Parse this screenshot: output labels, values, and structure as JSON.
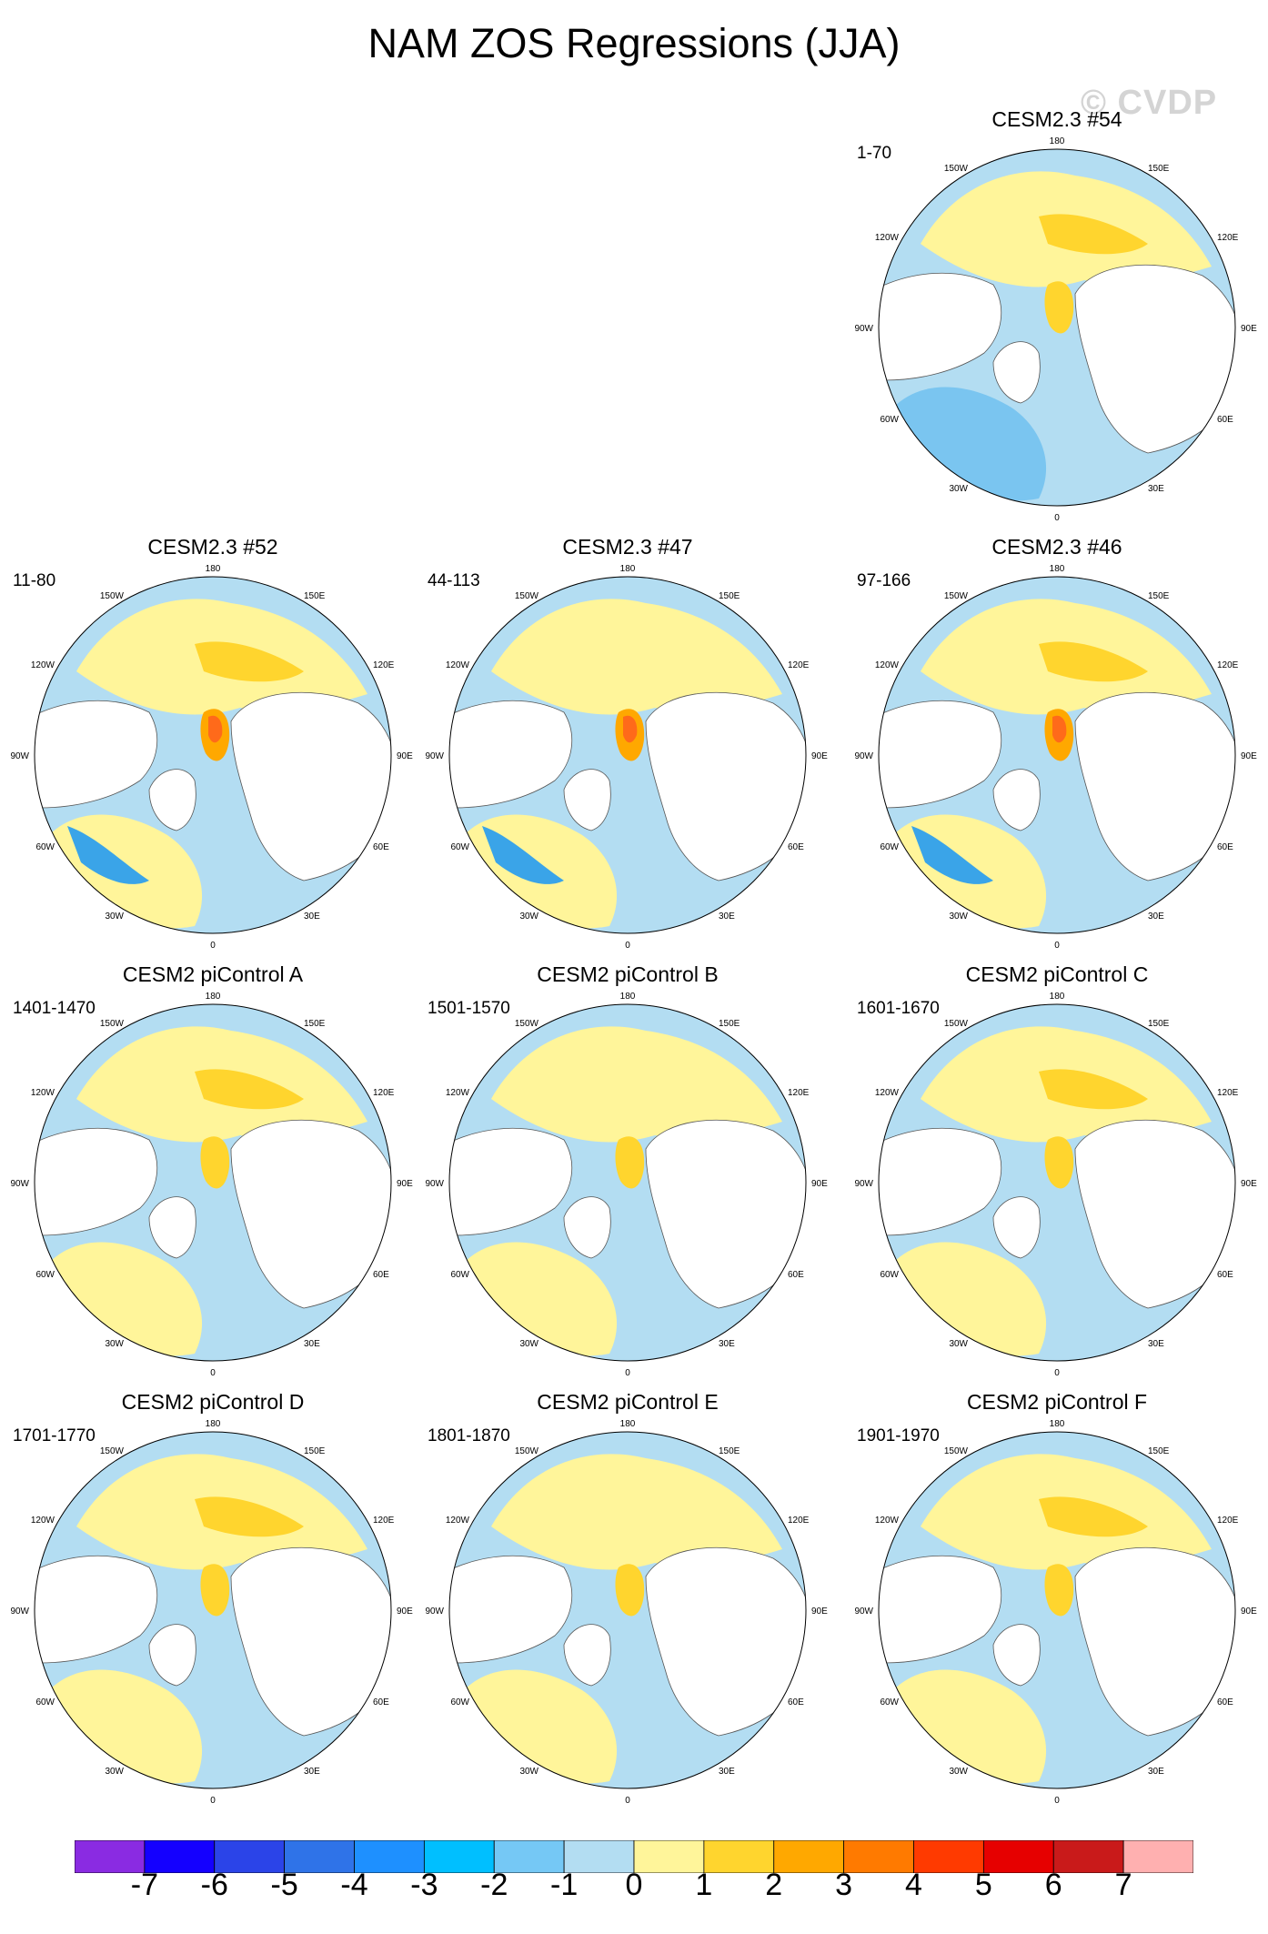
{
  "title": "NAM ZOS Regressions (JJA)",
  "watermark": "© CVDP",
  "panels": [
    {
      "title": "CESM2.3 #54",
      "period": "1-70"
    },
    {
      "title": "CESM2.3 #52",
      "period": "11-80"
    },
    {
      "title": "CESM2.3 #47",
      "period": "44-113"
    },
    {
      "title": "CESM2.3 #46",
      "period": "97-166"
    },
    {
      "title": "CESM2 piControl A",
      "period": "1401-1470"
    },
    {
      "title": "CESM2 piControl B",
      "period": "1501-1570"
    },
    {
      "title": "CESM2 piControl C",
      "period": "1601-1670"
    },
    {
      "title": "CESM2 piControl D",
      "period": "1701-1770"
    },
    {
      "title": "CESM2 piControl E",
      "period": "1801-1870"
    },
    {
      "title": "CESM2 piControl F",
      "period": "1901-1970"
    }
  ],
  "map_labels": {
    "top": "180",
    "bottom": "0",
    "left": "90W",
    "right": "90E",
    "upper_left_1": "150W",
    "upper_left_2": "120W",
    "lower_left_1": "60W",
    "lower_left_2": "30W",
    "upper_right_1": "150E",
    "upper_right_2": "120E",
    "lower_right_1": "60E",
    "lower_right_2": "30E"
  },
  "map_colors": {
    "ocean_neg": "#b3ddf2",
    "ocean_neg2": "#7ac5f0",
    "ocean_neg3": "#3aa4e8",
    "ocean_pos": "#fff59a",
    "ocean_pos2": "#ffd52e",
    "ocean_pos3": "#ffa800",
    "ocean_pos4": "#ff6a1a",
    "land": "#ffffff",
    "coast": "#555555"
  },
  "colorbar": {
    "ticks": [
      "-7",
      "-6",
      "-5",
      "-4",
      "-3",
      "-2",
      "-1",
      "0",
      "1",
      "2",
      "3",
      "4",
      "5",
      "6",
      "7"
    ],
    "colors": [
      "#8a2be2",
      "#1400ff",
      "#2b44e8",
      "#2f73e8",
      "#1e90ff",
      "#00bfff",
      "#75c8f5",
      "#b3ddf2",
      "#fff59a",
      "#ffd52e",
      "#ffa800",
      "#ff7a00",
      "#ff3a00",
      "#e60000",
      "#c91a1a",
      "#ffb0b0"
    ]
  }
}
